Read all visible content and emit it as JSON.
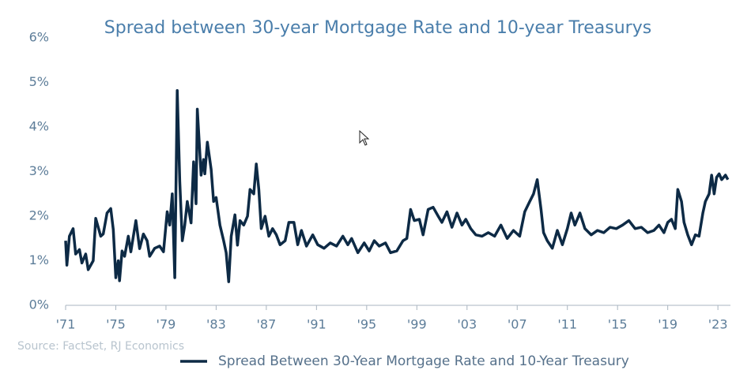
{
  "chart_data": {
    "type": "line",
    "title": "Spread between 30-year Mortgage Rate and 10-year Treasurys",
    "source": "Source: FactSet, RJ Economics",
    "xlim": [
      1971,
      2024
    ],
    "xticks": [
      {
        "value": 1971,
        "label": "'71"
      },
      {
        "value": 1975,
        "label": "'75"
      },
      {
        "value": 1979,
        "label": "'79"
      },
      {
        "value": 1983,
        "label": "'83"
      },
      {
        "value": 1987,
        "label": "'87"
      },
      {
        "value": 1991,
        "label": "'91"
      },
      {
        "value": 1995,
        "label": "'95"
      },
      {
        "value": 1999,
        "label": "'99"
      },
      {
        "value": 2003,
        "label": "'03"
      },
      {
        "value": 2007,
        "label": "'07"
      },
      {
        "value": 2011,
        "label": "'11"
      },
      {
        "value": 2015,
        "label": "'15"
      },
      {
        "value": 2019,
        "label": "'19"
      },
      {
        "value": 2023,
        "label": "'23"
      }
    ],
    "ylim": [
      0,
      6
    ],
    "yticks": [
      {
        "value": 0,
        "label": "0%"
      },
      {
        "value": 1,
        "label": "1%"
      },
      {
        "value": 2,
        "label": "2%"
      },
      {
        "value": 3,
        "label": "3%"
      },
      {
        "value": 4,
        "label": "4%"
      },
      {
        "value": 5,
        "label": "5%"
      },
      {
        "value": 6,
        "label": "6%"
      }
    ],
    "grid": false,
    "legend": "bottom",
    "series": [
      {
        "name": "Spread Between 30-Year Mortgage Rate and 10-Year Treasury",
        "color": "#0d2a45",
        "x": [
          1971.0,
          1971.1,
          1971.3,
          1971.6,
          1971.8,
          1972.1,
          1972.3,
          1972.6,
          1972.8,
          1973.2,
          1973.4,
          1973.8,
          1974.0,
          1974.3,
          1974.6,
          1974.8,
          1975.0,
          1975.2,
          1975.3,
          1975.5,
          1975.7,
          1976.0,
          1976.2,
          1976.6,
          1976.9,
          1977.2,
          1977.5,
          1977.7,
          1978.1,
          1978.5,
          1978.8,
          1979.1,
          1979.3,
          1979.5,
          1979.7,
          1979.9,
          1980.1,
          1980.3,
          1980.5,
          1980.7,
          1981.0,
          1981.2,
          1981.4,
          1981.5,
          1981.8,
          1982.0,
          1982.1,
          1982.3,
          1982.6,
          1982.8,
          1983.0,
          1983.3,
          1983.6,
          1983.8,
          1984.0,
          1984.2,
          1984.5,
          1984.7,
          1984.9,
          1985.2,
          1985.5,
          1985.7,
          1986.0,
          1986.2,
          1986.4,
          1986.6,
          1986.9,
          1987.2,
          1987.5,
          1987.8,
          1988.1,
          1988.5,
          1988.8,
          1989.2,
          1989.5,
          1989.8,
          1990.2,
          1990.7,
          1991.1,
          1991.6,
          1992.1,
          1992.6,
          1993.1,
          1993.5,
          1993.8,
          1994.3,
          1994.8,
          1995.2,
          1995.6,
          1996.0,
          1996.5,
          1996.9,
          1997.4,
          1997.9,
          1998.2,
          1998.5,
          1998.8,
          1999.2,
          1999.5,
          1999.9,
          2000.3,
          2000.7,
          2001.0,
          2001.4,
          2001.8,
          2002.2,
          2002.6,
          2002.9,
          2003.3,
          2003.7,
          2004.2,
          2004.7,
          2005.2,
          2005.7,
          2006.2,
          2006.7,
          2007.2,
          2007.6,
          2008.0,
          2008.3,
          2008.6,
          2008.9,
          2009.1,
          2009.4,
          2009.8,
          2010.2,
          2010.6,
          2011.0,
          2011.3,
          2011.6,
          2012.0,
          2012.4,
          2012.9,
          2013.4,
          2013.9,
          2014.4,
          2014.9,
          2015.4,
          2015.9,
          2016.4,
          2016.9,
          2017.4,
          2017.9,
          2018.3,
          2018.7,
          2019.0,
          2019.3,
          2019.6,
          2019.8,
          2020.1,
          2020.3,
          2020.6,
          2020.9,
          2021.2,
          2021.5,
          2021.8,
          2022.0,
          2022.3,
          2022.5,
          2022.7,
          2022.9,
          2023.1,
          2023.3,
          2023.6,
          2023.8
        ],
        "values": [
          1.45,
          0.9,
          1.55,
          1.72,
          1.15,
          1.25,
          0.95,
          1.15,
          0.8,
          1.0,
          1.95,
          1.55,
          1.6,
          2.07,
          2.17,
          1.7,
          0.62,
          1.0,
          0.55,
          1.22,
          1.1,
          1.55,
          1.2,
          1.9,
          1.27,
          1.6,
          1.45,
          1.1,
          1.28,
          1.33,
          1.2,
          2.1,
          1.8,
          2.5,
          0.62,
          4.82,
          2.78,
          1.45,
          1.8,
          2.33,
          1.85,
          3.22,
          2.28,
          4.4,
          2.92,
          3.27,
          2.95,
          3.66,
          3.05,
          2.33,
          2.42,
          1.8,
          1.45,
          1.18,
          0.53,
          1.55,
          2.03,
          1.35,
          1.9,
          1.8,
          2.0,
          2.6,
          2.5,
          3.17,
          2.6,
          1.72,
          2.0,
          1.55,
          1.72,
          1.58,
          1.36,
          1.45,
          1.86,
          1.86,
          1.36,
          1.68,
          1.33,
          1.58,
          1.36,
          1.28,
          1.4,
          1.33,
          1.55,
          1.36,
          1.5,
          1.18,
          1.4,
          1.22,
          1.45,
          1.33,
          1.4,
          1.18,
          1.22,
          1.45,
          1.5,
          2.15,
          1.9,
          1.93,
          1.58,
          2.15,
          2.2,
          2.0,
          1.86,
          2.1,
          1.75,
          2.07,
          1.8,
          1.93,
          1.72,
          1.58,
          1.55,
          1.63,
          1.55,
          1.8,
          1.5,
          1.68,
          1.55,
          2.1,
          2.33,
          2.5,
          2.82,
          2.15,
          1.63,
          1.45,
          1.28,
          1.68,
          1.36,
          1.72,
          2.07,
          1.8,
          2.07,
          1.72,
          1.58,
          1.68,
          1.63,
          1.75,
          1.72,
          1.8,
          1.9,
          1.72,
          1.75,
          1.63,
          1.68,
          1.8,
          1.63,
          1.86,
          1.93,
          1.72,
          2.6,
          2.33,
          1.86,
          1.58,
          1.36,
          1.58,
          1.55,
          2.07,
          2.33,
          2.5,
          2.92,
          2.5,
          2.87,
          2.95,
          2.82,
          2.92,
          2.82
        ]
      }
    ]
  }
}
